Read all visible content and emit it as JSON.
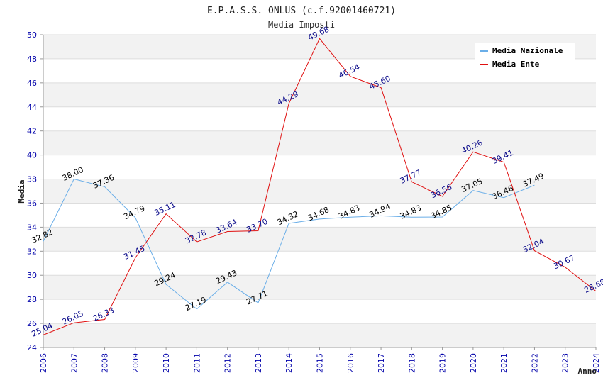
{
  "chart_data": {
    "type": "line",
    "title": "E.P.A.S.S. ONLUS (c.f.92001460721)",
    "subtitle": "Media Imposti",
    "ylabel": "Media",
    "xlabel": "Anno",
    "ylim": [
      24,
      50
    ],
    "yticks": [
      24,
      26,
      28,
      30,
      32,
      34,
      36,
      38,
      40,
      42,
      44,
      46,
      48,
      50
    ],
    "categories": [
      "2006",
      "2007",
      "2008",
      "2009",
      "2010",
      "2011",
      "2012",
      "2013",
      "2014",
      "2015",
      "2016",
      "2017",
      "2018",
      "2019",
      "2020",
      "2021",
      "2022",
      "2023",
      "2024"
    ],
    "series": [
      {
        "name": "Media Nazionale",
        "color": "#6aaee8",
        "values": [
          32.82,
          38.0,
          37.36,
          34.79,
          29.24,
          27.19,
          29.43,
          27.71,
          34.32,
          34.68,
          34.83,
          34.94,
          34.83,
          34.85,
          37.05,
          36.46,
          37.49,
          null,
          null
        ],
        "labels": [
          "32.82",
          "38.00",
          "37.36",
          "34.79",
          "29.24",
          "27.19",
          "29.43",
          "27.71",
          "34.32",
          "34.68",
          "34.83",
          "34.94",
          "34.83",
          "34.85",
          "37.05",
          "36.46",
          "37.49",
          null,
          null
        ]
      },
      {
        "name": "Media Ente",
        "color": "#e01010",
        "values": [
          25.04,
          26.05,
          26.33,
          31.45,
          35.11,
          32.78,
          33.64,
          33.7,
          44.29,
          49.68,
          46.54,
          45.6,
          37.77,
          36.56,
          40.26,
          39.41,
          32.04,
          30.67,
          28.68
        ],
        "labels": [
          "25.04",
          "26.05",
          "26.33",
          "31.45",
          "35.11",
          "32.78",
          "33.64",
          "33.70",
          "44.29",
          "49.68",
          "46.54",
          "45.60",
          "37.77",
          "36.56",
          "40.26",
          "39.41",
          "32.04",
          "30.67",
          "28.68"
        ]
      }
    ],
    "grid": true,
    "legend": "top-right"
  }
}
